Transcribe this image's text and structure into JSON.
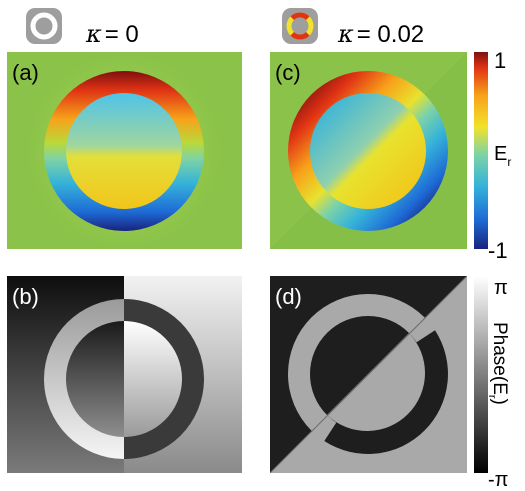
{
  "header": {
    "left": {
      "symbol": "κ",
      "equals": "= 0"
    },
    "right": {
      "symbol": "κ",
      "equals": "= 0.02"
    }
  },
  "panels": {
    "a": {
      "label": "(a)"
    },
    "b": {
      "label": "(b)"
    },
    "c": {
      "label": "(c)"
    },
    "d": {
      "label": "(d)"
    }
  },
  "colorbar_field": {
    "max_label": "1",
    "min_label": "-1",
    "title_main": "E",
    "title_sub": "r",
    "colors": [
      "#1a237e",
      "#1e6bd6",
      "#35b3d9",
      "#7ed3a6",
      "#f2e22a",
      "#f7a21a",
      "#e03314",
      "#7f1010"
    ]
  },
  "colorbar_phase": {
    "max_label": "π",
    "min_label": "-π",
    "title": "Phase(E",
    "title_sub": "r",
    "title_end": ")",
    "colors": [
      "#000000",
      "#ffffff"
    ]
  },
  "colors": {
    "field_background": "#8bc34a",
    "phase_dark": "#1e1e1e",
    "phase_light": "#a9a9a9",
    "thumb_grey": "#9e9e9e"
  }
}
